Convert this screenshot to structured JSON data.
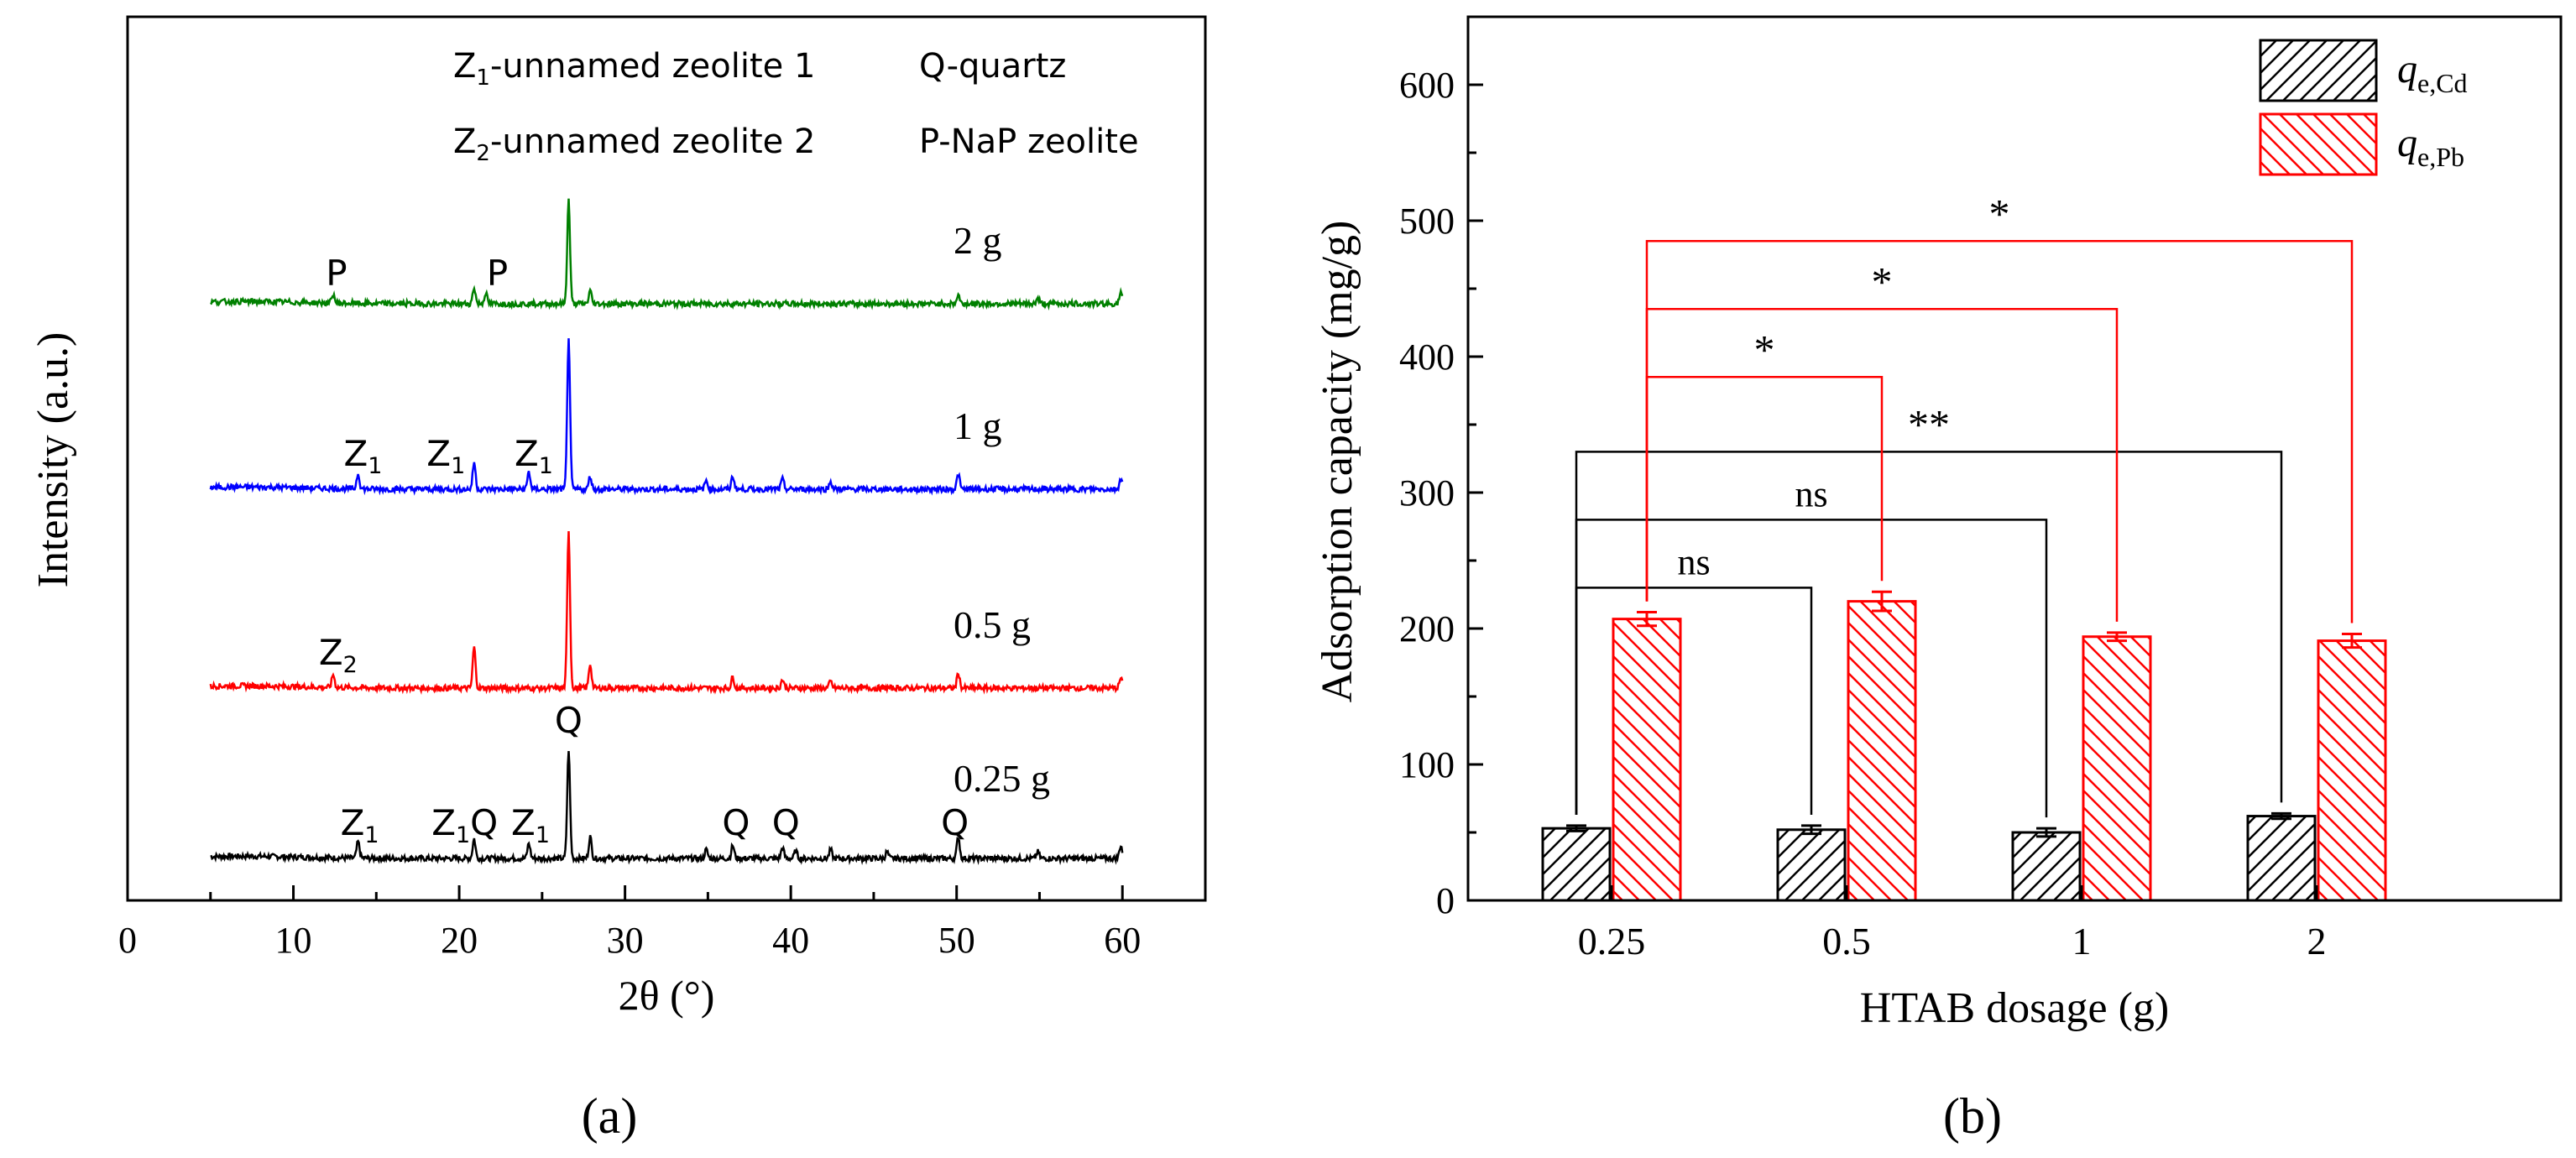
{
  "chart_data": [
    {
      "type": "line",
      "panel_label": "(a)",
      "xlabel": "2θ (°)",
      "ylabel": "Intensity (a.u.)",
      "xlim": [
        0,
        65
      ],
      "x_ticks": [
        "0",
        "10",
        "20",
        "30",
        "40",
        "50",
        "60"
      ],
      "x_tick_values": [
        0,
        10,
        20,
        30,
        40,
        50,
        60
      ],
      "y_ticks_shown": false,
      "legend_text": [
        "Z1-unnamed zeolite 1",
        "Q-quartz",
        "Z2-unnamed zeolite 2",
        "P-NaP zeolite"
      ],
      "legend": [
        {
          "letter": "Z",
          "sub": "1",
          "text": "-unnamed zeolite 1"
        },
        {
          "letter": "Q",
          "sub": "",
          "text": "-quartz"
        },
        {
          "letter": "Z",
          "sub": "2",
          "text": "-unnamed zeolite 2"
        },
        {
          "letter": "P",
          "sub": "",
          "text": "-NaP zeolite"
        }
      ],
      "x_range": [
        5,
        60
      ],
      "series": [
        {
          "name": "0.25 g",
          "color": "#000000",
          "baseline_level": 0,
          "peaks": [
            [
              13.9,
              0.15
            ],
            [
              20.9,
              0.18
            ],
            [
              24.2,
              0.14
            ],
            [
              26.6,
              1.0
            ],
            [
              27.9,
              0.2
            ],
            [
              34.9,
              0.08
            ],
            [
              36.5,
              0.12
            ],
            [
              39.5,
              0.1
            ],
            [
              40.3,
              0.07
            ],
            [
              42.4,
              0.08
            ],
            [
              45.8,
              0.06
            ],
            [
              50.1,
              0.2
            ],
            [
              54.9,
              0.06
            ],
            [
              59.9,
              0.12
            ]
          ],
          "annotations": [
            {
              "letter": "Q",
              "sub": "",
              "x": 26.6
            },
            {
              "letter": "Z",
              "sub": "1",
              "x": 14.0
            },
            {
              "letter": "Z",
              "sub": "1",
              "x": 19.5
            },
            {
              "letter": "Q",
              "sub": "",
              "x": 21.5
            },
            {
              "letter": "Z",
              "sub": "1",
              "x": 24.3
            },
            {
              "letter": "Q",
              "sub": "",
              "x": 36.7
            },
            {
              "letter": "Q",
              "sub": "",
              "x": 39.7
            },
            {
              "letter": "Q",
              "sub": "",
              "x": 49.9
            }
          ]
        },
        {
          "name": "0.5 g",
          "color": "#ff0000",
          "baseline_level": 1,
          "peaks": [
            [
              12.4,
              0.12
            ],
            [
              20.9,
              0.38
            ],
            [
              26.6,
              1.45
            ],
            [
              27.9,
              0.22
            ],
            [
              36.5,
              0.1
            ],
            [
              39.5,
              0.08
            ],
            [
              42.4,
              0.06
            ],
            [
              50.1,
              0.14
            ],
            [
              59.9,
              0.09
            ]
          ],
          "annotations": [
            {
              "letter": "Z",
              "sub": "2",
              "x": 12.7
            }
          ]
        },
        {
          "name": "1 g",
          "color": "#0000ff",
          "baseline_level": 2,
          "peaks": [
            [
              13.9,
              0.14
            ],
            [
              20.9,
              0.25
            ],
            [
              24.2,
              0.16
            ],
            [
              26.6,
              1.4
            ],
            [
              27.9,
              0.12
            ],
            [
              34.9,
              0.08
            ],
            [
              36.5,
              0.12
            ],
            [
              39.5,
              0.09
            ],
            [
              42.4,
              0.07
            ],
            [
              50.1,
              0.14
            ],
            [
              59.9,
              0.1
            ]
          ],
          "annotations": [
            {
              "letter": "Z",
              "sub": "1",
              "x": 14.2
            },
            {
              "letter": "Z",
              "sub": "1",
              "x": 19.2
            },
            {
              "letter": "Z",
              "sub": "1",
              "x": 24.5
            }
          ]
        },
        {
          "name": "2 g",
          "color": "#008000",
          "baseline_level": 3,
          "peaks": [
            [
              12.4,
              0.08
            ],
            [
              20.9,
              0.15
            ],
            [
              21.6,
              0.1
            ],
            [
              26.6,
              0.95
            ],
            [
              27.9,
              0.12
            ],
            [
              50.1,
              0.08
            ],
            [
              54.9,
              0.05
            ],
            [
              59.9,
              0.1
            ]
          ],
          "annotations": [
            {
              "letter": "P",
              "sub": "",
              "x": 12.6
            },
            {
              "letter": "P",
              "sub": "",
              "x": 22.3
            }
          ]
        }
      ]
    },
    {
      "type": "bar",
      "panel_label": "(b)",
      "xlabel": "HTAB dosage (g)",
      "ylabel": "Adsorption capacity (mg/g)",
      "ylim": [
        0,
        650
      ],
      "y_ticks": [
        "0",
        "100",
        "200",
        "300",
        "400",
        "500",
        "600"
      ],
      "y_tick_values": [
        0,
        100,
        200,
        300,
        400,
        500,
        600
      ],
      "categories": [
        "0.25",
        "0.5",
        "1",
        "2"
      ],
      "legend_labels": [
        "qe,Cd",
        "qe,Pb"
      ],
      "series": [
        {
          "name": "qe,Cd",
          "name_main": "q",
          "name_sub": "e,Cd",
          "color": "#000000",
          "hatch": "forward",
          "values": [
            53,
            52,
            50,
            62
          ],
          "errors": [
            2,
            3,
            3,
            2
          ]
        },
        {
          "name": "qe,Pb",
          "name_main": "q",
          "name_sub": "e,Pb",
          "color": "#ff0000",
          "hatch": "backward",
          "values": [
            207,
            220,
            194,
            191
          ],
          "errors": [
            5,
            7,
            3,
            5
          ]
        }
      ],
      "significance": [
        {
          "series": "qe,Cd",
          "from": 0,
          "to": 1,
          "label": "ns",
          "level_value": 230,
          "color": "#000000"
        },
        {
          "series": "qe,Cd",
          "from": 0,
          "to": 2,
          "label": "ns",
          "level_value": 280,
          "color": "#000000"
        },
        {
          "series": "qe,Cd",
          "from": 0,
          "to": 3,
          "label": "**",
          "level_value": 330,
          "color": "#000000"
        },
        {
          "series": "qe,Pb",
          "from": 0,
          "to": 1,
          "label": "*",
          "level_value": 385,
          "color": "#ff0000"
        },
        {
          "series": "qe,Pb",
          "from": 0,
          "to": 2,
          "label": "*",
          "level_value": 435,
          "color": "#ff0000"
        },
        {
          "series": "qe,Pb",
          "from": 0,
          "to": 3,
          "label": "*",
          "level_value": 485,
          "color": "#ff0000"
        }
      ]
    }
  ]
}
